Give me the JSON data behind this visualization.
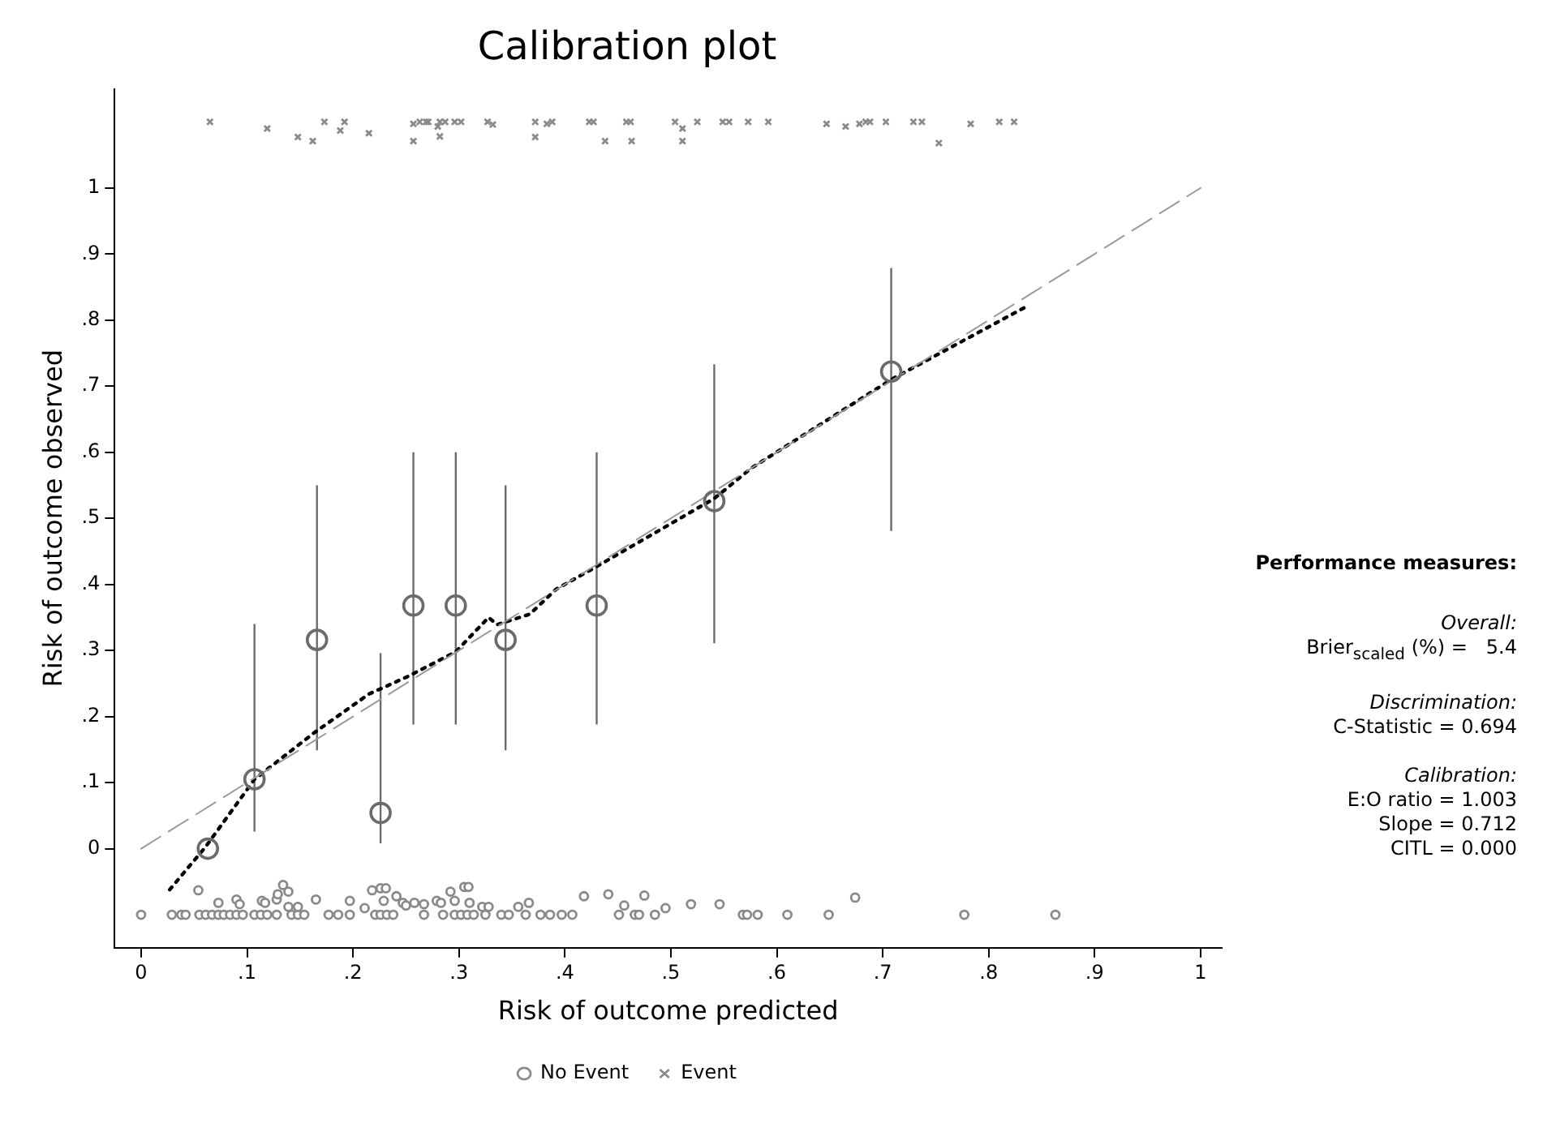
{
  "chart_data": {
    "type": "scatter",
    "title": "Calibration plot",
    "xlabel": "Risk of outcome predicted",
    "ylabel": "Risk of outcome observed",
    "xlim": [
      -0.025,
      1.02
    ],
    "ylim": [
      -0.15,
      1.15
    ],
    "xticks": [
      0,
      {
        "value": 0.1,
        "label": ".1"
      },
      {
        "value": 0.2,
        "label": ".2"
      },
      {
        "value": 0.3,
        "label": ".3"
      },
      {
        "value": 0.4,
        "label": ".4"
      },
      {
        "value": 0.5,
        "label": ".5"
      },
      {
        "value": 0.6,
        "label": ".6"
      },
      {
        "value": 0.7,
        "label": ".7"
      },
      {
        "value": 0.8,
        "label": ".8"
      },
      {
        "value": 0.9,
        "label": ".9"
      },
      1
    ],
    "yticks": [
      0,
      {
        "value": 0.1,
        "label": ".1"
      },
      {
        "value": 0.2,
        "label": ".2"
      },
      {
        "value": 0.3,
        "label": ".3"
      },
      {
        "value": 0.4,
        "label": ".4"
      },
      {
        "value": 0.5,
        "label": ".5"
      },
      {
        "value": 0.6,
        "label": ".6"
      },
      {
        "value": 0.7,
        "label": ".7"
      },
      {
        "value": 0.8,
        "label": ".8"
      },
      {
        "value": 0.9,
        "label": ".9"
      },
      1
    ],
    "grid": false,
    "legend": "bottom",
    "annotations": [
      "Performance measures:",
      "Overall:",
      "Brier$_{scaled}$ (%) =   5.4",
      "Discrimination:",
      "C-Statistic = 0.694",
      "Calibration:",
      "E:O ratio = 1.003",
      "Slope = 0.712",
      "CITL = 0.000"
    ],
    "series": [
      {
        "marker": "circle",
        "color": "#6b6b6b",
        "x": [
          0.063,
          0.107,
          0.166,
          0.226,
          0.257,
          0.297,
          0.344,
          0.43,
          0.541,
          0.708
        ],
        "values": [
          0.0,
          0.105,
          0.316,
          0.054,
          0.368,
          0.368,
          0.316,
          0.368,
          0.526,
          0.722
        ],
        "errors": [
          null,
          [
            0.026,
            0.34
          ],
          [
            0.149,
            0.55
          ],
          [
            0.008,
            0.296
          ],
          [
            0.188,
            0.6
          ],
          [
            0.188,
            0.6
          ],
          [
            0.149,
            0.55
          ],
          [
            0.188,
            0.6
          ],
          [
            0.311,
            0.733
          ],
          [
            0.481,
            0.879
          ]
        ]
      },
      {
        "type": "line",
        "marker": "none",
        "line_style": "dashed",
        "color": "#9a9a9a",
        "x": [
          0,
          1
        ],
        "values": [
          0,
          1
        ]
      },
      {
        "type": "line",
        "marker": "none",
        "line_style": "dotted",
        "color": "#000000",
        "x": [
          0.027,
          0.061,
          0.107,
          0.163,
          0.215,
          0.251,
          0.297,
          0.328,
          0.336,
          0.367,
          0.392,
          0.43,
          0.541,
          0.576,
          0.708,
          0.835
        ],
        "values": [
          -0.062,
          0.003,
          0.105,
          0.175,
          0.234,
          0.26,
          0.298,
          0.35,
          0.339,
          0.355,
          0.393,
          0.427,
          0.53,
          0.576,
          0.71,
          0.82
        ]
      },
      {
        "name": "No Event",
        "marker": "circle",
        "color": "#8a8a8a",
        "x": [
          0.0,
          0.029,
          0.038,
          0.042,
          0.055,
          0.061,
          0.067,
          0.073,
          0.078,
          0.084,
          0.09,
          0.096,
          0.107,
          0.113,
          0.119,
          0.128,
          0.142,
          0.148,
          0.154,
          0.177,
          0.186,
          0.197,
          0.221,
          0.226,
          0.232,
          0.238,
          0.267,
          0.285,
          0.296,
          0.302,
          0.308,
          0.314,
          0.325,
          0.34,
          0.347,
          0.363,
          0.377,
          0.386,
          0.397,
          0.407,
          0.451,
          0.466,
          0.47,
          0.485,
          0.568,
          0.572,
          0.582,
          0.61,
          0.649,
          0.777,
          0.863,
          0.054,
          0.073,
          0.09,
          0.093,
          0.114,
          0.117,
          0.128,
          0.129,
          0.134,
          0.139,
          0.139,
          0.148,
          0.165,
          0.197,
          0.211,
          0.218,
          0.226,
          0.231,
          0.229,
          0.241,
          0.247,
          0.25,
          0.258,
          0.267,
          0.279,
          0.283,
          0.292,
          0.296,
          0.305,
          0.309,
          0.31,
          0.322,
          0.328,
          0.356,
          0.366,
          0.418,
          0.441,
          0.456,
          0.475,
          0.495,
          0.519,
          0.546,
          0.674
        ],
        "values": [
          -0.1,
          -0.1,
          -0.1,
          -0.1,
          -0.1,
          -0.1,
          -0.1,
          -0.1,
          -0.1,
          -0.1,
          -0.1,
          -0.1,
          -0.1,
          -0.1,
          -0.1,
          -0.1,
          -0.1,
          -0.1,
          -0.1,
          -0.1,
          -0.1,
          -0.1,
          -0.1,
          -0.1,
          -0.1,
          -0.1,
          -0.1,
          -0.1,
          -0.1,
          -0.1,
          -0.1,
          -0.1,
          -0.1,
          -0.1,
          -0.1,
          -0.1,
          -0.1,
          -0.1,
          -0.1,
          -0.1,
          -0.1,
          -0.1,
          -0.1,
          -0.1,
          -0.1,
          -0.1,
          -0.1,
          -0.1,
          -0.1,
          -0.1,
          -0.1,
          -0.063,
          -0.082,
          -0.077,
          -0.084,
          -0.079,
          -0.082,
          -0.077,
          -0.069,
          -0.055,
          -0.065,
          -0.088,
          -0.088,
          -0.077,
          -0.079,
          -0.09,
          -0.063,
          -0.06,
          -0.06,
          -0.079,
          -0.072,
          -0.082,
          -0.086,
          -0.082,
          -0.084,
          -0.079,
          -0.082,
          -0.065,
          -0.079,
          -0.058,
          -0.058,
          -0.082,
          -0.088,
          -0.088,
          -0.088,
          -0.082,
          -0.072,
          -0.069,
          -0.086,
          -0.071,
          -0.09,
          -0.084,
          -0.084,
          -0.074
        ]
      },
      {
        "name": "Event",
        "marker": "cross",
        "color": "#8a8a8a",
        "x": [
          0.065,
          0.119,
          0.148,
          0.162,
          0.173,
          0.188,
          0.192,
          0.215,
          0.257,
          0.257,
          0.263,
          0.269,
          0.271,
          0.28,
          0.282,
          0.282,
          0.287,
          0.296,
          0.302,
          0.327,
          0.332,
          0.372,
          0.372,
          0.383,
          0.388,
          0.423,
          0.427,
          0.438,
          0.458,
          0.462,
          0.463,
          0.504,
          0.511,
          0.511,
          0.525,
          0.549,
          0.555,
          0.573,
          0.592,
          0.647,
          0.665,
          0.678,
          0.684,
          0.688,
          0.703,
          0.729,
          0.737,
          0.753,
          0.783,
          0.81,
          0.824
        ],
        "values": [
          1.1,
          1.09,
          1.077,
          1.071,
          1.1,
          1.087,
          1.1,
          1.083,
          1.097,
          1.071,
          1.1,
          1.1,
          1.1,
          1.093,
          1.1,
          1.078,
          1.1,
          1.1,
          1.1,
          1.1,
          1.096,
          1.1,
          1.077,
          1.097,
          1.1,
          1.1,
          1.1,
          1.071,
          1.1,
          1.1,
          1.071,
          1.1,
          1.09,
          1.071,
          1.1,
          1.1,
          1.1,
          1.1,
          1.1,
          1.097,
          1.093,
          1.097,
          1.1,
          1.1,
          1.1,
          1.1,
          1.1,
          1.068,
          1.097,
          1.1,
          1.1
        ]
      }
    ]
  }
}
